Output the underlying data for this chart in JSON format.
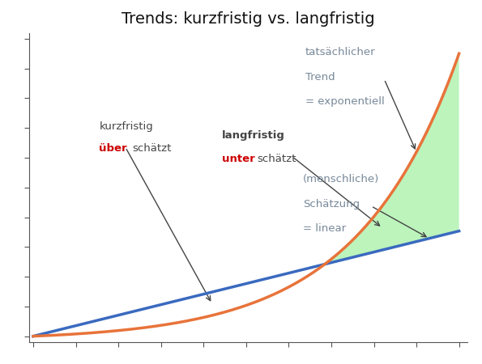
{
  "title": "Trends: kurzfristig vs. langfristig",
  "title_fontsize": 14,
  "background_color": "#ffffff",
  "plot_bg_color": "#ffffff",
  "exponential_color": "#e8733a",
  "linear_color": "#3a6abf",
  "linear_linewidth": 2.5,
  "exponential_linewidth": 2.5,
  "fill_red_color": "#f08080",
  "fill_red_alpha": 0.6,
  "fill_green_color": "#90ee90",
  "fill_green_alpha": 0.6,
  "dashed_color": "#ffffff",
  "dashed_linewidth": 1.8,
  "annotation_color_black": "#444444",
  "annotation_color_red": "#cc0000",
  "annotation_color_gray": "#778899",
  "label_kurz_line1": "kurzfristig",
  "label_kurz_bold": "über",
  "label_kurz_normal": "schätzt",
  "label_lang_line1": "langfristig",
  "label_lang_bold": "unter",
  "label_lang_normal": "schätzt",
  "label_tats_line1": "tatsächlicher",
  "label_tats_line2": "Trend",
  "label_tats_line3": "= exponentiell",
  "label_mensch_line1": "(menschliche)",
  "label_mensch_line2": "Schätzung",
  "label_mensch_line3": "= linear",
  "tick_color": "#555555",
  "spine_color": "#555555",
  "a_exp": 0.018,
  "b_exp": 4.2,
  "lin_slope": 0.44
}
